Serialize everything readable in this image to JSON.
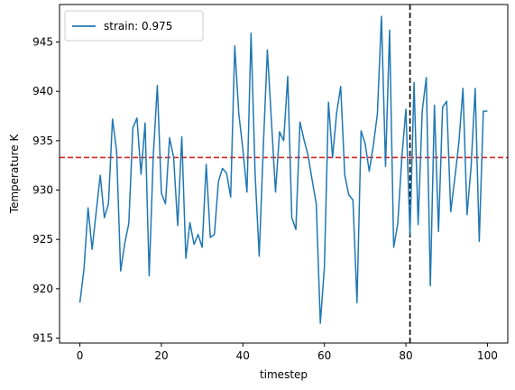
{
  "chart_data": {
    "type": "line",
    "xlabel": "timestep",
    "ylabel": "Temperature K",
    "xlim": [
      -5,
      105
    ],
    "ylim": [
      914.5,
      948.8
    ],
    "xticks": [
      0,
      20,
      40,
      60,
      80,
      100
    ],
    "yticks": [
      915,
      920,
      925,
      930,
      935,
      940,
      945
    ],
    "grid": false,
    "legend_position": "upper-left",
    "series": [
      {
        "name": "strain: 0.975",
        "color": "#1f77b4",
        "x": [
          0,
          1,
          2,
          3,
          4,
          5,
          6,
          7,
          8,
          9,
          10,
          11,
          12,
          13,
          14,
          15,
          16,
          17,
          18,
          19,
          20,
          21,
          22,
          23,
          24,
          25,
          26,
          27,
          28,
          29,
          30,
          31,
          32,
          33,
          34,
          35,
          36,
          37,
          38,
          39,
          40,
          41,
          42,
          43,
          44,
          45,
          46,
          47,
          48,
          49,
          50,
          51,
          52,
          53,
          54,
          55,
          56,
          57,
          58,
          59,
          60,
          61,
          62,
          63,
          64,
          65,
          66,
          67,
          68,
          69,
          70,
          71,
          72,
          73,
          74,
          75,
          76,
          77,
          78,
          79,
          80,
          81,
          82,
          83,
          84,
          85,
          86,
          87,
          88,
          89,
          90,
          91,
          92,
          93,
          94,
          95,
          96,
          97,
          98,
          99,
          100
        ],
        "y": [
          918.6,
          922.0,
          928.2,
          924.0,
          927.8,
          931.5,
          927.2,
          928.6,
          937.2,
          934.0,
          921.8,
          924.6,
          926.6,
          936.3,
          937.3,
          931.6,
          936.8,
          921.3,
          933.4,
          940.6,
          929.7,
          928.6,
          935.3,
          933.3,
          926.4,
          935.4,
          923.1,
          926.7,
          924.5,
          925.5,
          924.2,
          932.6,
          925.2,
          925.5,
          930.9,
          932.2,
          931.7,
          929.3,
          944.6,
          937.7,
          934.1,
          929.8,
          945.9,
          931.6,
          923.3,
          934.3,
          944.2,
          937.0,
          929.8,
          935.9,
          935.0,
          941.5,
          927.2,
          926.0,
          936.9,
          935.1,
          933.5,
          931.0,
          928.6,
          916.5,
          922.2,
          938.9,
          933.3,
          937.8,
          940.5,
          931.5,
          929.5,
          929.0,
          918.6,
          936.0,
          934.7,
          931.9,
          934.5,
          937.7,
          947.6,
          932.4,
          946.2,
          924.2,
          926.6,
          933.3,
          938.2,
          925.5,
          940.9,
          926.5,
          938.0,
          941.4,
          920.3,
          938.6,
          925.8,
          938.4,
          939.0,
          927.8,
          931.2,
          934.8,
          940.3,
          927.5,
          932.4,
          940.3,
          924.8,
          938.0,
          938.0
        ]
      }
    ],
    "hlines": [
      {
        "y": 933.3,
        "color": "#d62728",
        "style": "dashed"
      }
    ],
    "vlines": [
      {
        "x": 81,
        "color": "#000000",
        "style": "dashed"
      }
    ]
  }
}
